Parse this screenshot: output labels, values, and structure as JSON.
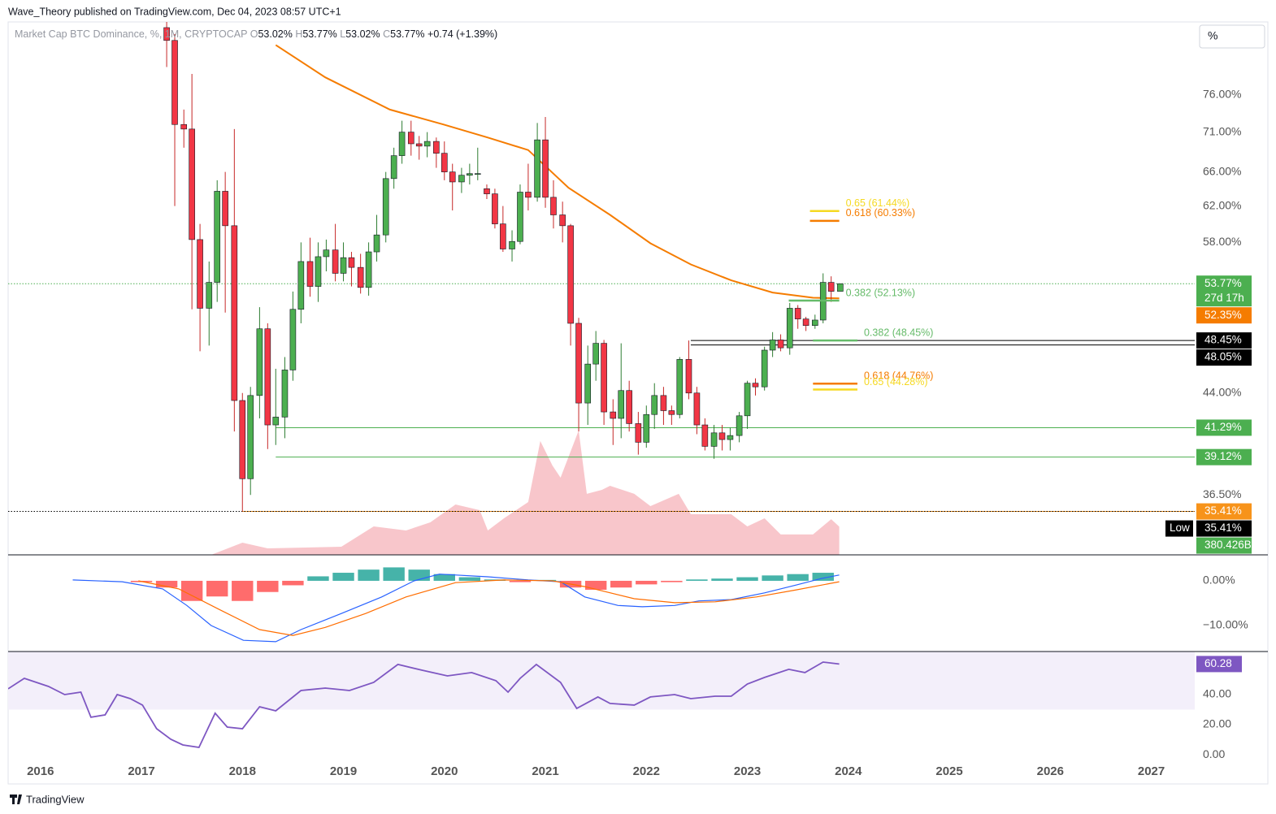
{
  "header": {
    "published": "Wave_Theory published on TradingView.com, Dec 04, 2023 08:57 UTC+1",
    "legend_title": "Market Cap BTC Dominance, %, 1M, CRYPTOCAP",
    "ohlc": [
      {
        "k": "O",
        "v": "53.02%"
      },
      {
        "k": "H",
        "v": "53.77%"
      },
      {
        "k": "L",
        "v": "53.02%"
      },
      {
        "k": "C",
        "v": "53.77%"
      }
    ],
    "change": "+0.74 (+1.39%)",
    "scale_button": "%"
  },
  "footer": {
    "brand": "TradingView"
  },
  "x_axis": {
    "xlim": [
      2015.68,
      2027.43
    ],
    "xticks": [
      2016,
      2017,
      2018,
      2019,
      2020,
      2021,
      2022,
      2023,
      2024,
      2025,
      2026,
      2027
    ]
  },
  "chart_data": [
    {
      "type": "candlestick",
      "log": true,
      "ylim": [
        32.7,
        86.9
      ],
      "yticks": [
        {
          "value": 76,
          "label": "76.00%"
        },
        {
          "value": 71,
          "label": "71.00%"
        },
        {
          "value": 66,
          "label": "66.00%"
        },
        {
          "value": 62,
          "label": "62.00%"
        },
        {
          "value": 58,
          "label": "58.00%"
        },
        {
          "value": 44,
          "label": "44.00%"
        },
        {
          "value": 36.5,
          "label": "36.50%"
        }
      ],
      "up_color": "#4caf50",
      "down_color": "#f23645",
      "candles": {
        "x": [
          2017.25,
          2017.33,
          2017.42,
          2017.5,
          2017.58,
          2017.67,
          2017.75,
          2017.83,
          2017.92,
          2018,
          2018.08,
          2018.17,
          2018.25,
          2018.33,
          2018.42,
          2018.5,
          2018.58,
          2018.67,
          2018.75,
          2018.83,
          2018.92,
          2019,
          2019.08,
          2019.17,
          2019.25,
          2019.33,
          2019.42,
          2019.5,
          2019.58,
          2019.67,
          2019.75,
          2019.83,
          2019.92,
          2020,
          2020.08,
          2020.17,
          2020.25,
          2020.33,
          2020.42,
          2020.5,
          2020.58,
          2020.67,
          2020.75,
          2020.83,
          2020.92,
          2021,
          2021.08,
          2021.17,
          2021.25,
          2021.33,
          2021.42,
          2021.5,
          2021.58,
          2021.67,
          2021.75,
          2021.83,
          2021.92,
          2022,
          2022.08,
          2022.17,
          2022.25,
          2022.33,
          2022.42,
          2022.5,
          2022.58,
          2022.67,
          2022.75,
          2022.83,
          2022.92,
          2023,
          2023.08,
          2023.17,
          2023.25,
          2023.33,
          2023.42,
          2023.5,
          2023.58,
          2023.67,
          2023.75,
          2023.83,
          2023.92
        ],
        "open": [
          86,
          84,
          72,
          71.4,
          58.3,
          51.4,
          53.9,
          63.7,
          59.8,
          43.4,
          37.6,
          43.8,
          49.5,
          41.5,
          42.1,
          45.9,
          51.3,
          56.0,
          53.5,
          56.5,
          57.2,
          54.8,
          56.4,
          55.4,
          53.4,
          57.0,
          58.8,
          65.2,
          68.0,
          71.0,
          69.5,
          69.2,
          69.8,
          68.3,
          66.0,
          64.8,
          65.6,
          65.8,
          64,
          63.4,
          60.0,
          57.3,
          58.1,
          63.6,
          63.0,
          70.0,
          63.0,
          61.0,
          59.8,
          50.0,
          43.2,
          46.4,
          48.2,
          42.5,
          42.0,
          44.2,
          41.6,
          40.2,
          42.3,
          43.8,
          42.6,
          42.3,
          46.8,
          44.0,
          41.5,
          39.9,
          40.9,
          40.4,
          40.7,
          42.2,
          44.8,
          44.5,
          47.6,
          48.5,
          47.8,
          51.4,
          50.4,
          49.8,
          50.3,
          53.9,
          53.02
        ],
        "high": [
          86.9,
          85,
          74,
          79,
          60,
          56,
          65,
          66,
          71.4,
          44,
          44.5,
          51.5,
          50,
          46,
          47,
          53,
          58,
          58.5,
          58,
          58.3,
          60,
          58,
          57,
          56.8,
          58,
          61,
          66,
          69,
          72.5,
          72.5,
          70.5,
          71,
          70.3,
          69.8,
          67,
          66.5,
          67,
          69,
          64.5,
          64,
          62,
          59.3,
          64.5,
          67,
          72.2,
          73,
          65,
          62.5,
          60,
          50.5,
          48,
          49.3,
          48.5,
          43.5,
          48.2,
          45,
          42.5,
          43,
          44.8,
          44.5,
          43,
          47,
          48.45,
          44.5,
          42,
          41.5,
          41.5,
          41.3,
          42.5,
          45,
          45.2,
          47.9,
          49.2,
          49,
          51.9,
          51.7,
          50.6,
          50.8,
          54.8,
          54.5,
          53.77
        ],
        "low": [
          80,
          62,
          69,
          51.3,
          47.5,
          48,
          52,
          51,
          41,
          35.41,
          36.5,
          42,
          39.7,
          40,
          40.5,
          45,
          50,
          52.5,
          52,
          55,
          54,
          54,
          53.5,
          52.8,
          52.6,
          56,
          58,
          64,
          67,
          68,
          67.5,
          67.8,
          66.5,
          65,
          61.5,
          63.5,
          64.5,
          65,
          62.8,
          59.5,
          57,
          56,
          57.8,
          61.5,
          62.5,
          61.8,
          59.5,
          58,
          48,
          41,
          41.5,
          45,
          41.5,
          40,
          40.5,
          41,
          39.3,
          39.8,
          41.2,
          41.5,
          41.5,
          42,
          43.5,
          40.8,
          39.6,
          39.0,
          39.6,
          39.6,
          40.2,
          41.2,
          43.8,
          44.2,
          47,
          47.5,
          47.2,
          49.5,
          49.3,
          49.5,
          50.0,
          52.0,
          53.02
        ],
        "close": [
          84,
          72,
          71.4,
          58.3,
          51.4,
          53.9,
          63.7,
          59.8,
          43.4,
          37.6,
          43.8,
          49.5,
          41.5,
          42.1,
          45.9,
          51.3,
          56.0,
          53.5,
          56.5,
          57.2,
          54.8,
          56.4,
          55.4,
          53.4,
          57.0,
          58.8,
          65.2,
          68.0,
          71.0,
          69.5,
          69.2,
          69.8,
          68.3,
          66.0,
          64.8,
          65.6,
          65.8,
          65.8,
          63.4,
          60.0,
          57.3,
          58.1,
          63.6,
          63.0,
          70.0,
          63.0,
          61.0,
          59.8,
          50.0,
          43.2,
          46.4,
          48.2,
          42.5,
          42.0,
          44.2,
          41.6,
          40.2,
          42.3,
          43.8,
          42.6,
          42.3,
          46.8,
          44.0,
          41.5,
          39.9,
          40.9,
          40.4,
          40.7,
          42.2,
          44.8,
          44.5,
          47.6,
          48.5,
          47.8,
          51.4,
          50.4,
          49.8,
          50.3,
          53.9,
          53.02,
          53.77
        ]
      },
      "ma": {
        "color": "#f57c00",
        "x": [
          2018.33,
          2018.82,
          2019.46,
          2019.99,
          2020.43,
          2020.83,
          2021.23,
          2021.64,
          2022.04,
          2022.44,
          2022.84,
          2023.25,
          2023.65,
          2023.91
        ],
        "values": [
          83.3,
          78.5,
          74,
          72,
          70.3,
          68.7,
          64.1,
          61.0,
          57.9,
          55.7,
          54.1,
          52.9,
          52.4,
          52.35
        ],
        "last_label": "52.35%"
      },
      "volume": {
        "color": "#f7bcc2",
        "label_color": "#4caf50",
        "ylim": [
          0,
          1750
        ],
        "x": [
          2017.69,
          2018.0,
          2018.25,
          2018.98,
          2019.3,
          2019.62,
          2019.86,
          2020.11,
          2020.35,
          2020.43,
          2020.59,
          2020.83,
          2020.95,
          2021.07,
          2021.15,
          2021.33,
          2021.41,
          2021.56,
          2021.64,
          2021.88,
          2022.04,
          2022.32,
          2022.44,
          2022.68,
          2022.84,
          2023.0,
          2023.17,
          2023.33,
          2023.65,
          2023.83,
          2023.91
        ],
        "values": [
          0,
          164,
          88,
          109,
          383,
          328,
          438,
          678,
          602,
          328,
          492,
          711,
          1532,
          1203,
          1039,
          1674,
          821,
          875,
          930,
          821,
          656,
          821,
          547,
          547,
          547,
          383,
          492,
          274,
          274,
          480,
          380.426
        ],
        "last_label": "380.426B"
      },
      "levels": [
        {
          "value": 53.77,
          "label": "53.77%",
          "sub": "27d 17h",
          "color": "#4caf50",
          "from": 2015.68,
          "dash": true
        },
        {
          "value": 48.45,
          "label": "48.45%",
          "color": "#000000",
          "from": 2022.44
        },
        {
          "value": 48.05,
          "label": "48.05%",
          "color": "#000000",
          "from": 2022.44
        },
        {
          "value": 41.29,
          "label": "41.29%",
          "color": "#4caf50",
          "from": 2018.33
        },
        {
          "value": 39.12,
          "label": "39.12%",
          "color": "#4caf50",
          "from": 2018.33
        },
        {
          "value": 35.41,
          "label": "35.41%",
          "color": "#f7931a",
          "from": 2018.0
        },
        {
          "value": 35.41,
          "label": "35.41%",
          "color": "#000000",
          "from": 2015.68,
          "dash": true,
          "tag": "Low"
        }
      ],
      "fibs": [
        {
          "value": 61.44,
          "label": "0.65 (61.44%)",
          "color": "#f5d922",
          "x": [
            2023.62,
            2023.91
          ]
        },
        {
          "value": 60.33,
          "label": "0.618 (60.33%)",
          "color": "#f57c00",
          "x": [
            2023.62,
            2023.91
          ]
        },
        {
          "value": 52.13,
          "label": "0.382 (52.13%)",
          "color": "#66bb6a",
          "x": [
            2023.41,
            2023.91
          ]
        },
        {
          "value": 48.45,
          "label": "0.382 (48.45%)",
          "color": "#66bb6a",
          "x": [
            2023.65,
            2024.09
          ]
        },
        {
          "value": 44.76,
          "label": "0.618 (44.76%)",
          "color": "#f57c00",
          "x": [
            2023.65,
            2024.09
          ]
        },
        {
          "value": 44.28,
          "label": "0.65 (44.28%)",
          "color": "#f5d922",
          "x": [
            2023.65,
            2024.09
          ]
        }
      ]
    },
    {
      "type": "macd",
      "ylim": [
        -15.8,
        5.8
      ],
      "yticks": [
        {
          "value": 0,
          "label": "0.00%"
        },
        {
          "value": -10,
          "label": "−10.00%"
        }
      ],
      "histogram": {
        "up_color": "#26a69a",
        "down_color": "#ff5252",
        "x": [
          2017.0,
          2017.25,
          2017.5,
          2017.75,
          2018.0,
          2018.25,
          2018.5,
          2018.75,
          2019.0,
          2019.25,
          2019.5,
          2019.75,
          2020.0,
          2020.25,
          2020.5,
          2020.75,
          2021.0,
          2021.25,
          2021.5,
          2021.75,
          2022.0,
          2022.25,
          2022.5,
          2022.75,
          2023.0,
          2023.25,
          2023.5,
          2023.75
        ],
        "values": [
          -0.3,
          -1.5,
          -4.5,
          -3.5,
          -4.5,
          -2.5,
          -1.0,
          1.0,
          1.8,
          2.5,
          3.0,
          2.5,
          1.5,
          0.8,
          0.3,
          -0.3,
          0.2,
          -1.5,
          -2.0,
          -1.5,
          -0.8,
          -0.3,
          0.3,
          0.5,
          0.8,
          1.2,
          1.5,
          1.8
        ]
      },
      "series": [
        {
          "color": "#2962ff",
          "x": [
            2016.32,
            2016.81,
            2017.21,
            2017.45,
            2017.69,
            2018.01,
            2018.33,
            2018.58,
            2018.98,
            2019.38,
            2019.7,
            2019.95,
            2020.43,
            2020.83,
            2021.15,
            2021.39,
            2021.72,
            2021.96,
            2022.28,
            2022.52,
            2022.84,
            2023.17,
            2023.49,
            2023.73,
            2023.91
          ],
          "values": [
            0.2,
            -0.2,
            -1.8,
            -5.5,
            -10,
            -13.3,
            -13.6,
            -10.9,
            -7.3,
            -3.6,
            0,
            1.5,
            0.9,
            0.2,
            -0.2,
            -3.6,
            -5.5,
            -5.8,
            -5.5,
            -4.5,
            -4.2,
            -2.7,
            -0.9,
            0.5,
            1.3
          ]
        },
        {
          "color": "#ff6d00",
          "x": [
            2016.97,
            2017.37,
            2017.77,
            2018.17,
            2018.5,
            2018.82,
            2019.22,
            2019.62,
            2020.11,
            2020.59,
            2021.07,
            2021.39,
            2021.88,
            2022.28,
            2022.68,
            2023.09,
            2023.49,
            2023.91
          ],
          "values": [
            0,
            -1.8,
            -6.4,
            -10.9,
            -12.2,
            -10.4,
            -7.3,
            -3.6,
            -0.4,
            0.2,
            0,
            -1.3,
            -4,
            -4.9,
            -4.7,
            -3.6,
            -2,
            -0.2
          ]
        }
      ]
    },
    {
      "type": "line",
      "ylim": [
        -5.9,
        68.6
      ],
      "yticks": [
        {
          "value": 40,
          "label": "40.00"
        },
        {
          "value": 20,
          "label": "20.00"
        },
        {
          "value": 0,
          "label": "0.00"
        }
      ],
      "band": [
        30,
        70
      ],
      "band_color": "#f3effa",
      "series": [
        {
          "color": "#7e57c2",
          "last_label": "60.28",
          "x": [
            2015.68,
            2015.84,
            2016.08,
            2016.24,
            2016.4,
            2016.5,
            2016.64,
            2016.76,
            2016.89,
            2017.01,
            2017.15,
            2017.29,
            2017.41,
            2017.57,
            2017.73,
            2017.85,
            2018.0,
            2018.17,
            2018.33,
            2018.58,
            2018.82,
            2019.06,
            2019.3,
            2019.54,
            2019.78,
            2020.03,
            2020.27,
            2020.51,
            2020.63,
            2020.75,
            2020.91,
            2021.15,
            2021.31,
            2021.52,
            2021.64,
            2021.88,
            2022.04,
            2022.28,
            2022.44,
            2022.68,
            2022.84,
            2023.0,
            2023.17,
            2023.41,
            2023.57,
            2023.75,
            2023.91
          ],
          "values": [
            43.8,
            50.8,
            45.4,
            40,
            41.6,
            24.9,
            26.5,
            40,
            37.3,
            33,
            17.3,
            10.3,
            6.5,
            4.9,
            27.6,
            18.4,
            17.3,
            31.9,
            29.2,
            42.7,
            44.3,
            42.7,
            48.1,
            60,
            56.2,
            52.4,
            54.6,
            49.2,
            41.6,
            50.8,
            60,
            48.1,
            30.8,
            38.4,
            34.1,
            33,
            38.4,
            40,
            37.3,
            38.9,
            38.9,
            47,
            51.4,
            56.8,
            54.6,
            61.6,
            60.28
          ]
        }
      ]
    }
  ]
}
